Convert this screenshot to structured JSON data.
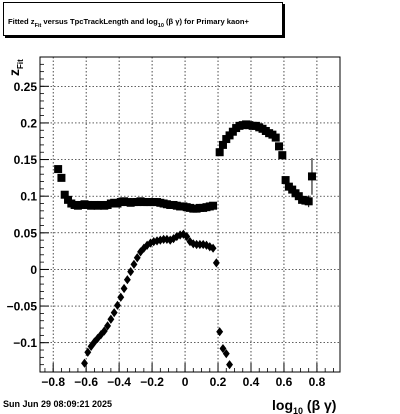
{
  "chart_data": {
    "type": "scatter",
    "title": {
      "prefix": "Fitted  z",
      "sub1": "Fit",
      "mid": "  versus TpcTrackLength and log",
      "sub2": "10",
      "suffix": " (β  γ) for Primary kaon+"
    },
    "xlabel": {
      "main": "log",
      "sub": "10",
      "rest": " (β γ)"
    },
    "ylabel": {
      "main": "z",
      "sub": "Fit"
    },
    "xlim": [
      -0.88,
      0.94
    ],
    "ylim": [
      -0.14,
      0.29
    ],
    "xticks": [
      -0.8,
      -0.6,
      -0.4,
      -0.2,
      0,
      0.2,
      0.4,
      0.6,
      0.8
    ],
    "xtick_labels": [
      "−0.8",
      "−0.6",
      "−0.4",
      "−0.2",
      "0",
      "0.2",
      "0.4",
      "0.6",
      "0.8"
    ],
    "yticks": [
      -0.1,
      -0.05,
      0,
      0.05,
      0.1,
      0.15,
      0.2,
      0.25
    ],
    "ytick_labels": [
      "−0.1",
      "−0.05",
      "0",
      "0.05",
      "0.1",
      "0.15",
      "0.2",
      "0.25"
    ],
    "grid": true,
    "series": [
      {
        "marker": "square",
        "x": [
          -0.77,
          -0.75,
          -0.73,
          -0.71,
          -0.69,
          -0.67,
          -0.65,
          -0.63,
          -0.61,
          -0.59,
          -0.57,
          -0.55,
          -0.53,
          -0.51,
          -0.49,
          -0.47,
          -0.45,
          -0.43,
          -0.41,
          -0.39,
          -0.37,
          -0.35,
          -0.33,
          -0.31,
          -0.29,
          -0.27,
          -0.25,
          -0.23,
          -0.21,
          -0.19,
          -0.17,
          -0.15,
          -0.13,
          -0.11,
          -0.09,
          -0.07,
          -0.05,
          -0.03,
          -0.01,
          0.01,
          0.03,
          0.05,
          0.07,
          0.09,
          0.11,
          0.13,
          0.15,
          0.17,
          0.21,
          0.23,
          0.25,
          0.27,
          0.29,
          0.31,
          0.33,
          0.35,
          0.37,
          0.39,
          0.41,
          0.43,
          0.45,
          0.47,
          0.49,
          0.51,
          0.53,
          0.55,
          0.57,
          0.59,
          0.61,
          0.63,
          0.65,
          0.67,
          0.69,
          0.71,
          0.73,
          0.75,
          0.77
        ],
        "y": [
          0.137,
          0.125,
          0.102,
          0.095,
          0.09,
          0.088,
          0.087,
          0.088,
          0.089,
          0.088,
          0.087,
          0.088,
          0.087,
          0.088,
          0.087,
          0.088,
          0.09,
          0.091,
          0.09,
          0.092,
          0.093,
          0.092,
          0.091,
          0.092,
          0.092,
          0.093,
          0.092,
          0.092,
          0.092,
          0.092,
          0.092,
          0.091,
          0.09,
          0.089,
          0.088,
          0.088,
          0.087,
          0.086,
          0.086,
          0.085,
          0.084,
          0.083,
          0.083,
          0.084,
          0.084,
          0.085,
          0.086,
          0.087,
          0.16,
          0.17,
          0.178,
          0.183,
          0.188,
          0.193,
          0.196,
          0.197,
          0.198,
          0.197,
          0.196,
          0.196,
          0.194,
          0.192,
          0.189,
          0.186,
          0.184,
          0.18,
          0.168,
          0.156,
          0.122,
          0.113,
          0.109,
          0.104,
          0.1,
          0.095,
          0.094,
          0.093,
          0.127
        ],
        "err": [
          0,
          0,
          0,
          0,
          0,
          0,
          0,
          0,
          0,
          0,
          0,
          0,
          0,
          0,
          0,
          0,
          0,
          0,
          0,
          0,
          0,
          0,
          0,
          0,
          0,
          0,
          0,
          0,
          0,
          0,
          0,
          0,
          0,
          0,
          0,
          0,
          0,
          0,
          0,
          0,
          0,
          0,
          0,
          0,
          0,
          0,
          0,
          0,
          0,
          0,
          0,
          0,
          0,
          0,
          0,
          0,
          0,
          0,
          0,
          0,
          0,
          0,
          0,
          0,
          0,
          0,
          0,
          0,
          0,
          0,
          0,
          0,
          0,
          0,
          0.006,
          0.008,
          0.025
        ]
      },
      {
        "marker": "diamond",
        "x": [
          -0.61,
          -0.59,
          -0.57,
          -0.55,
          -0.53,
          -0.51,
          -0.49,
          -0.47,
          -0.45,
          -0.43,
          -0.41,
          -0.39,
          -0.37,
          -0.35,
          -0.33,
          -0.31,
          -0.29,
          -0.27,
          -0.25,
          -0.23,
          -0.21,
          -0.19,
          -0.17,
          -0.15,
          -0.13,
          -0.11,
          -0.09,
          -0.07,
          -0.05,
          -0.03,
          -0.01,
          0.01,
          0.03,
          0.05,
          0.07,
          0.09,
          0.11,
          0.13,
          0.15,
          0.17,
          0.19,
          0.21,
          0.23,
          0.25,
          0.27
        ],
        "y": [
          -0.128,
          -0.113,
          -0.105,
          -0.099,
          -0.094,
          -0.089,
          -0.084,
          -0.077,
          -0.068,
          -0.059,
          -0.049,
          -0.038,
          -0.026,
          -0.014,
          -0.003,
          0.007,
          0.016,
          0.024,
          0.029,
          0.033,
          0.036,
          0.038,
          0.039,
          0.04,
          0.041,
          0.041,
          0.04,
          0.042,
          0.045,
          0.047,
          0.048,
          0.045,
          0.038,
          0.035,
          0.034,
          0.034,
          0.034,
          0.033,
          0.031,
          0.029,
          0.009,
          -0.085,
          -0.108,
          -0.115,
          -0.13
        ]
      }
    ]
  },
  "footer": {
    "timestamp": "Sun Jun 29 08:09:21 2025"
  }
}
